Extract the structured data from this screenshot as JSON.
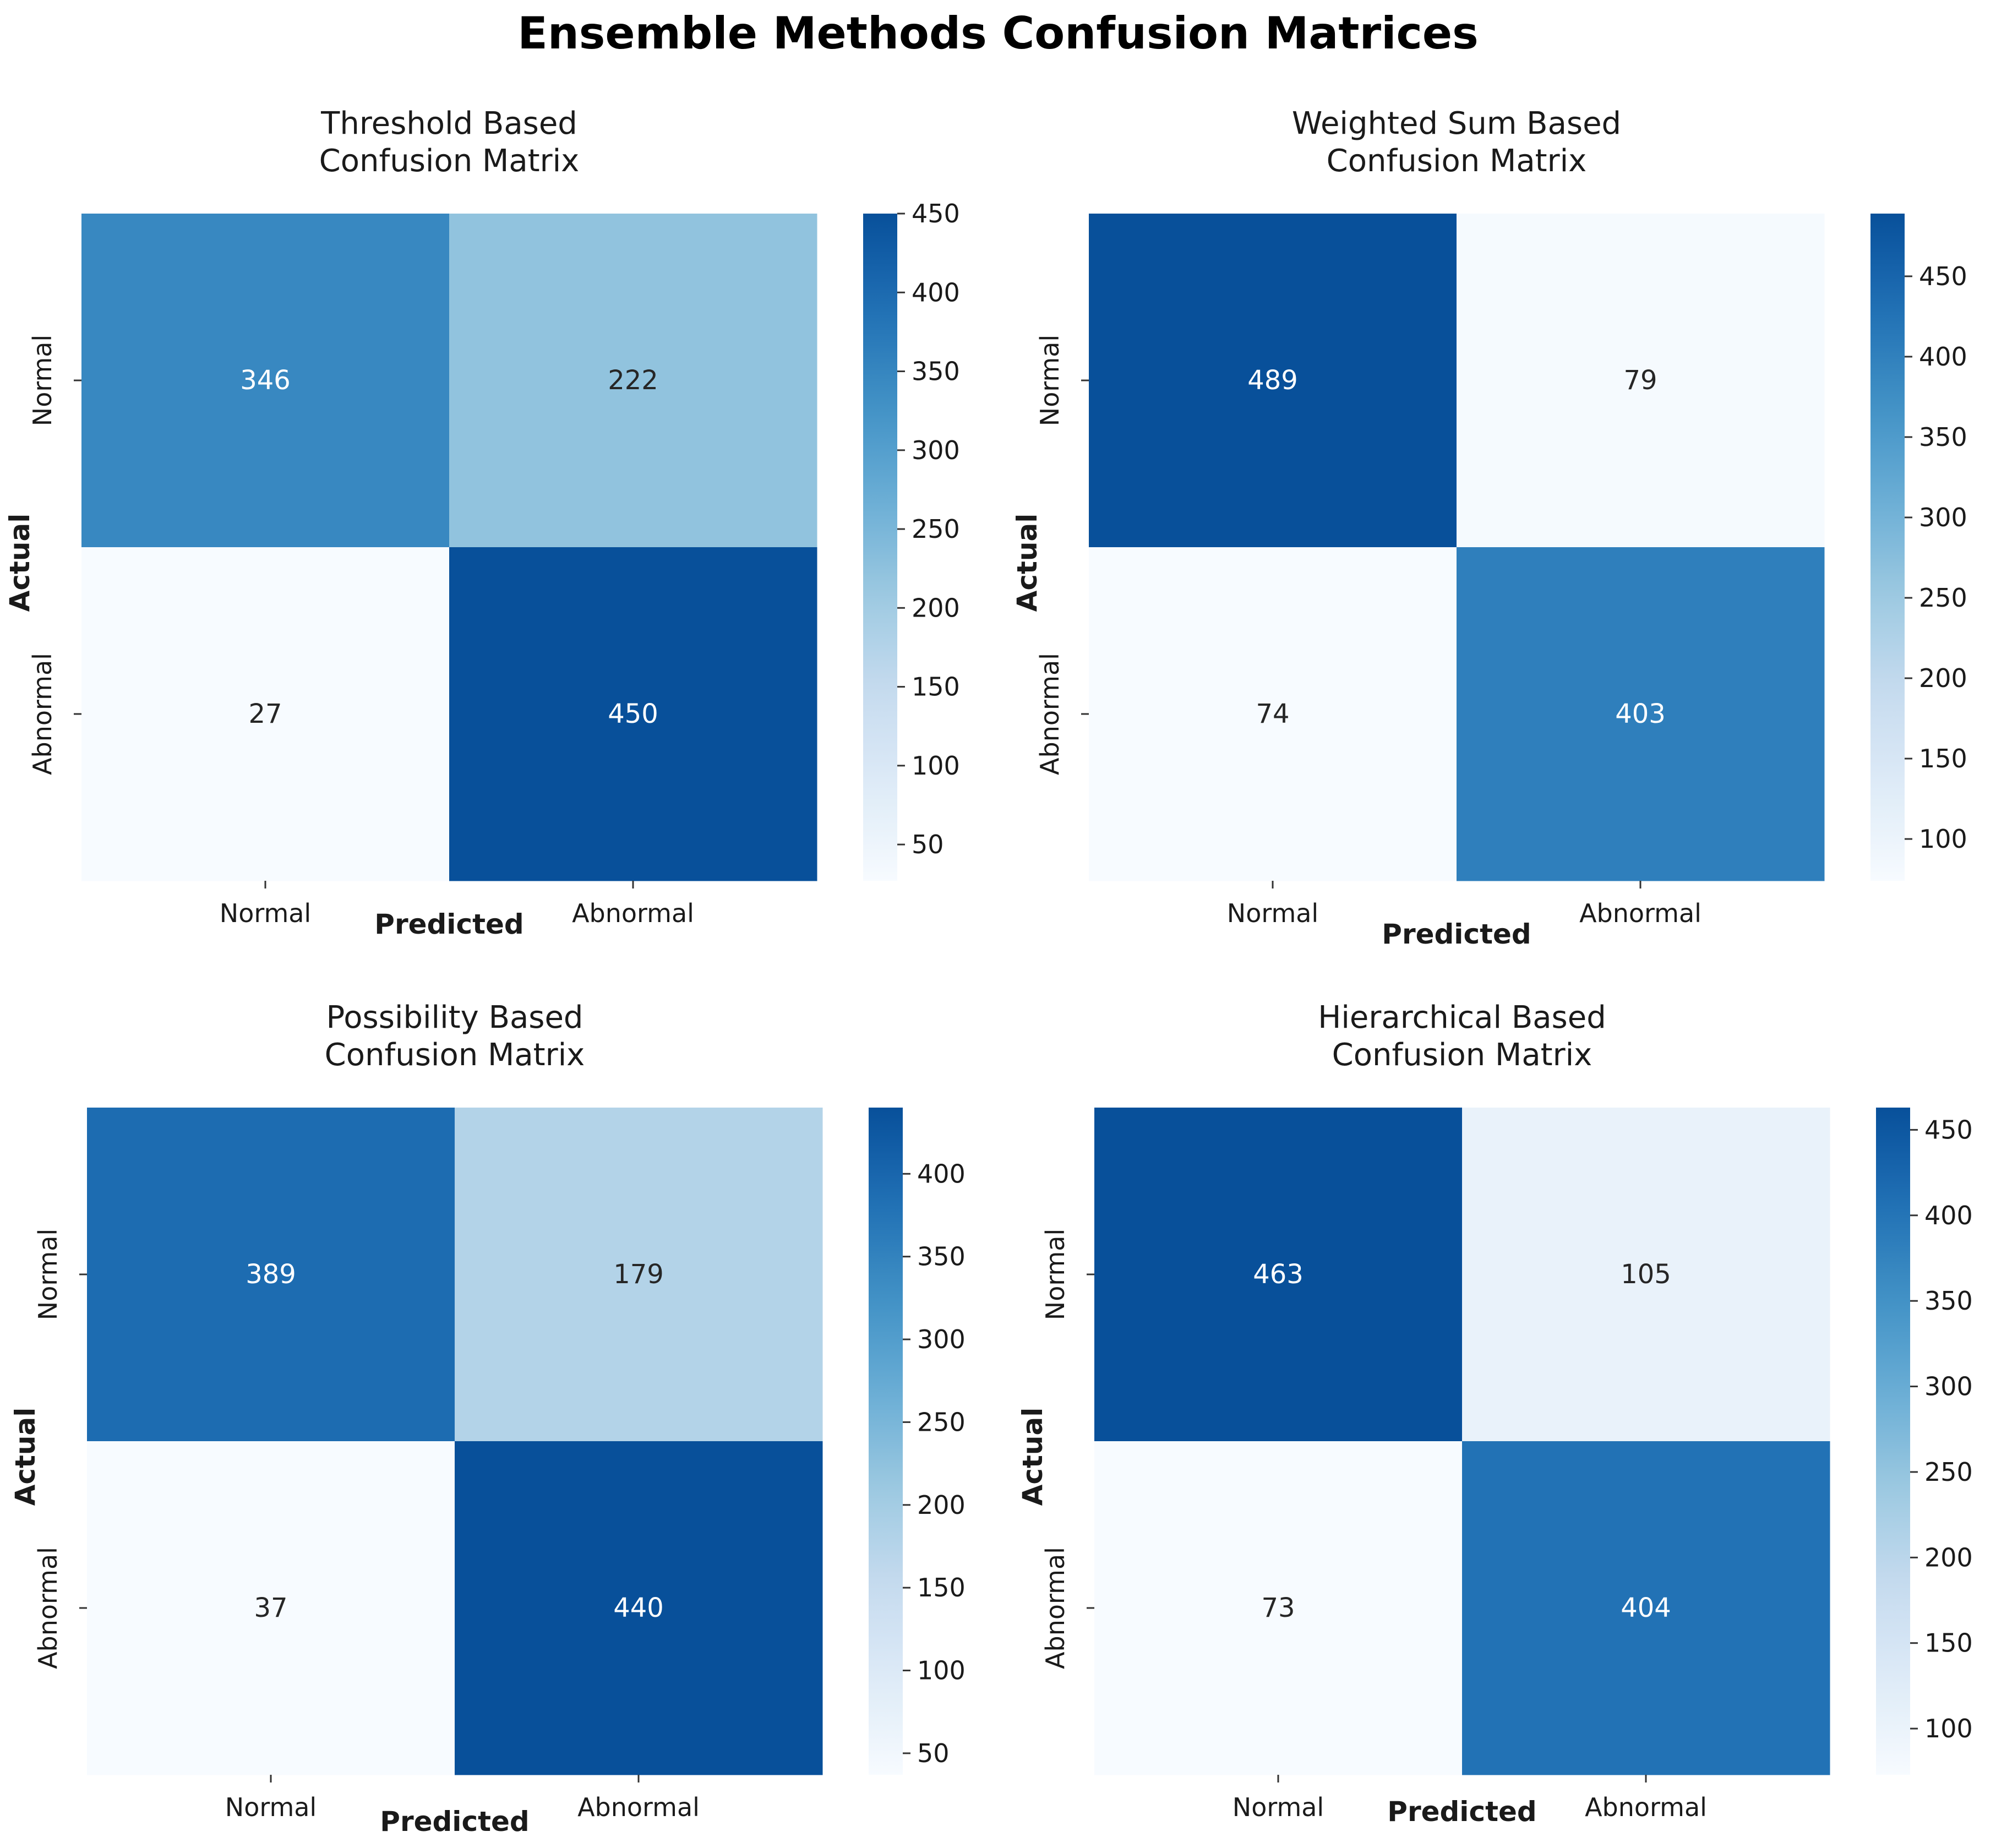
{
  "figure": {
    "title": "Ensemble Methods Confusion Matrices"
  },
  "chart_data": [
    {
      "type": "heatmap",
      "title": "Threshold Based\nConfusion Matrix",
      "xlabel": "Predicted",
      "ylabel": "Actual",
      "x_categories": [
        "Normal",
        "Abnormal"
      ],
      "y_categories": [
        "Normal",
        "Abnormal"
      ],
      "values": [
        [
          346,
          222
        ],
        [
          27,
          450
        ]
      ],
      "colormap": "Blues",
      "colorbar": {
        "min": 27,
        "max": 450,
        "ticks": [
          50,
          100,
          150,
          200,
          250,
          300,
          350,
          400,
          450
        ]
      }
    },
    {
      "type": "heatmap",
      "title": "Weighted Sum Based\nConfusion Matrix",
      "xlabel": "Predicted",
      "ylabel": "Actual",
      "x_categories": [
        "Normal",
        "Abnormal"
      ],
      "y_categories": [
        "Normal",
        "Abnormal"
      ],
      "values": [
        [
          489,
          79
        ],
        [
          74,
          403
        ]
      ],
      "colormap": "Blues",
      "colorbar": {
        "min": 74,
        "max": 489,
        "ticks": [
          100,
          150,
          200,
          250,
          300,
          350,
          400,
          450
        ]
      }
    },
    {
      "type": "heatmap",
      "title": "Possibility Based\nConfusion Matrix",
      "xlabel": "Predicted",
      "ylabel": "Actual",
      "x_categories": [
        "Normal",
        "Abnormal"
      ],
      "y_categories": [
        "Normal",
        "Abnormal"
      ],
      "values": [
        [
          389,
          179
        ],
        [
          37,
          440
        ]
      ],
      "colormap": "Blues",
      "colorbar": {
        "min": 37,
        "max": 440,
        "ticks": [
          50,
          100,
          150,
          200,
          250,
          300,
          350,
          400
        ]
      }
    },
    {
      "type": "heatmap",
      "title": "Hierarchical Based\nConfusion Matrix",
      "xlabel": "Predicted",
      "ylabel": "Actual",
      "x_categories": [
        "Normal",
        "Abnormal"
      ],
      "y_categories": [
        "Normal",
        "Abnormal"
      ],
      "values": [
        [
          463,
          105
        ],
        [
          73,
          404
        ]
      ],
      "colormap": "Blues",
      "colorbar": {
        "min": 73,
        "max": 463,
        "ticks": [
          100,
          150,
          200,
          250,
          300,
          350,
          400,
          450
        ]
      }
    }
  ]
}
